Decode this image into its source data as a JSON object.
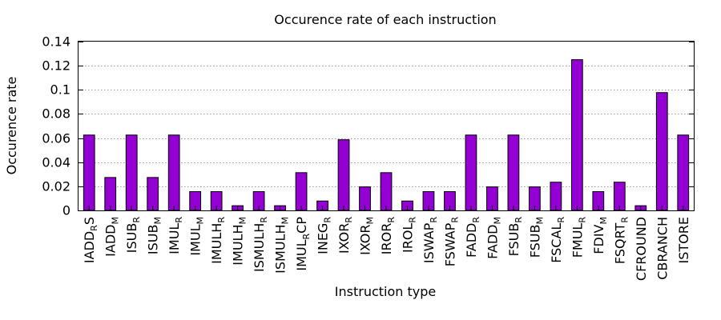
{
  "chart_data": {
    "type": "bar",
    "title": "Occurence rate of each instruction",
    "xlabel": "Instruction type",
    "ylabel": "Occurence rate",
    "ylim": [
      0,
      0.14
    ],
    "yticks": [
      "0",
      "0.02",
      "0.04",
      "0.06",
      "0.08",
      "0.1",
      "0.12",
      "0.14"
    ],
    "grid": "horizontal dotted",
    "bar_color": "#9400d3",
    "categories": [
      {
        "base": "IADD",
        "sub": "R",
        "suffix": "S"
      },
      {
        "base": "IADD",
        "sub": "M",
        "suffix": ""
      },
      {
        "base": "ISUB",
        "sub": "R",
        "suffix": ""
      },
      {
        "base": "ISUB",
        "sub": "M",
        "suffix": ""
      },
      {
        "base": "IMUL",
        "sub": "R",
        "suffix": ""
      },
      {
        "base": "IMUL",
        "sub": "M",
        "suffix": ""
      },
      {
        "base": "IMULH",
        "sub": "R",
        "suffix": ""
      },
      {
        "base": "IMULH",
        "sub": "M",
        "suffix": ""
      },
      {
        "base": "ISMULH",
        "sub": "R",
        "suffix": ""
      },
      {
        "base": "ISMULH",
        "sub": "M",
        "suffix": ""
      },
      {
        "base": "IMUL",
        "sub": "R",
        "suffix": "CP"
      },
      {
        "base": "INEG",
        "sub": "R",
        "suffix": ""
      },
      {
        "base": "IXOR",
        "sub": "R",
        "suffix": ""
      },
      {
        "base": "IXOR",
        "sub": "M",
        "suffix": ""
      },
      {
        "base": "IROR",
        "sub": "R",
        "suffix": ""
      },
      {
        "base": "IROL",
        "sub": "R",
        "suffix": ""
      },
      {
        "base": "ISWAP",
        "sub": "R",
        "suffix": ""
      },
      {
        "base": "FSWAP",
        "sub": "R",
        "suffix": ""
      },
      {
        "base": "FADD",
        "sub": "R",
        "suffix": ""
      },
      {
        "base": "FADD",
        "sub": "M",
        "suffix": ""
      },
      {
        "base": "FSUB",
        "sub": "R",
        "suffix": ""
      },
      {
        "base": "FSUB",
        "sub": "M",
        "suffix": ""
      },
      {
        "base": "FSCAL",
        "sub": "R",
        "suffix": ""
      },
      {
        "base": "FMUL",
        "sub": "R",
        "suffix": ""
      },
      {
        "base": "FDIV",
        "sub": "M",
        "suffix": ""
      },
      {
        "base": "FSQRT",
        "sub": "R",
        "suffix": ""
      },
      {
        "base": "CFROUND",
        "sub": "",
        "suffix": ""
      },
      {
        "base": "CBRANCH",
        "sub": "",
        "suffix": ""
      },
      {
        "base": "ISTORE",
        "sub": "",
        "suffix": ""
      }
    ],
    "values": [
      0.0625,
      0.0273,
      0.0625,
      0.0273,
      0.0625,
      0.0156,
      0.0156,
      0.0039,
      0.0156,
      0.0039,
      0.0313,
      0.0078,
      0.0586,
      0.0195,
      0.0313,
      0.0078,
      0.0156,
      0.0156,
      0.0625,
      0.0195,
      0.0625,
      0.0195,
      0.0234,
      0.125,
      0.0156,
      0.0234,
      0.0039,
      0.0977,
      0.0625
    ]
  }
}
